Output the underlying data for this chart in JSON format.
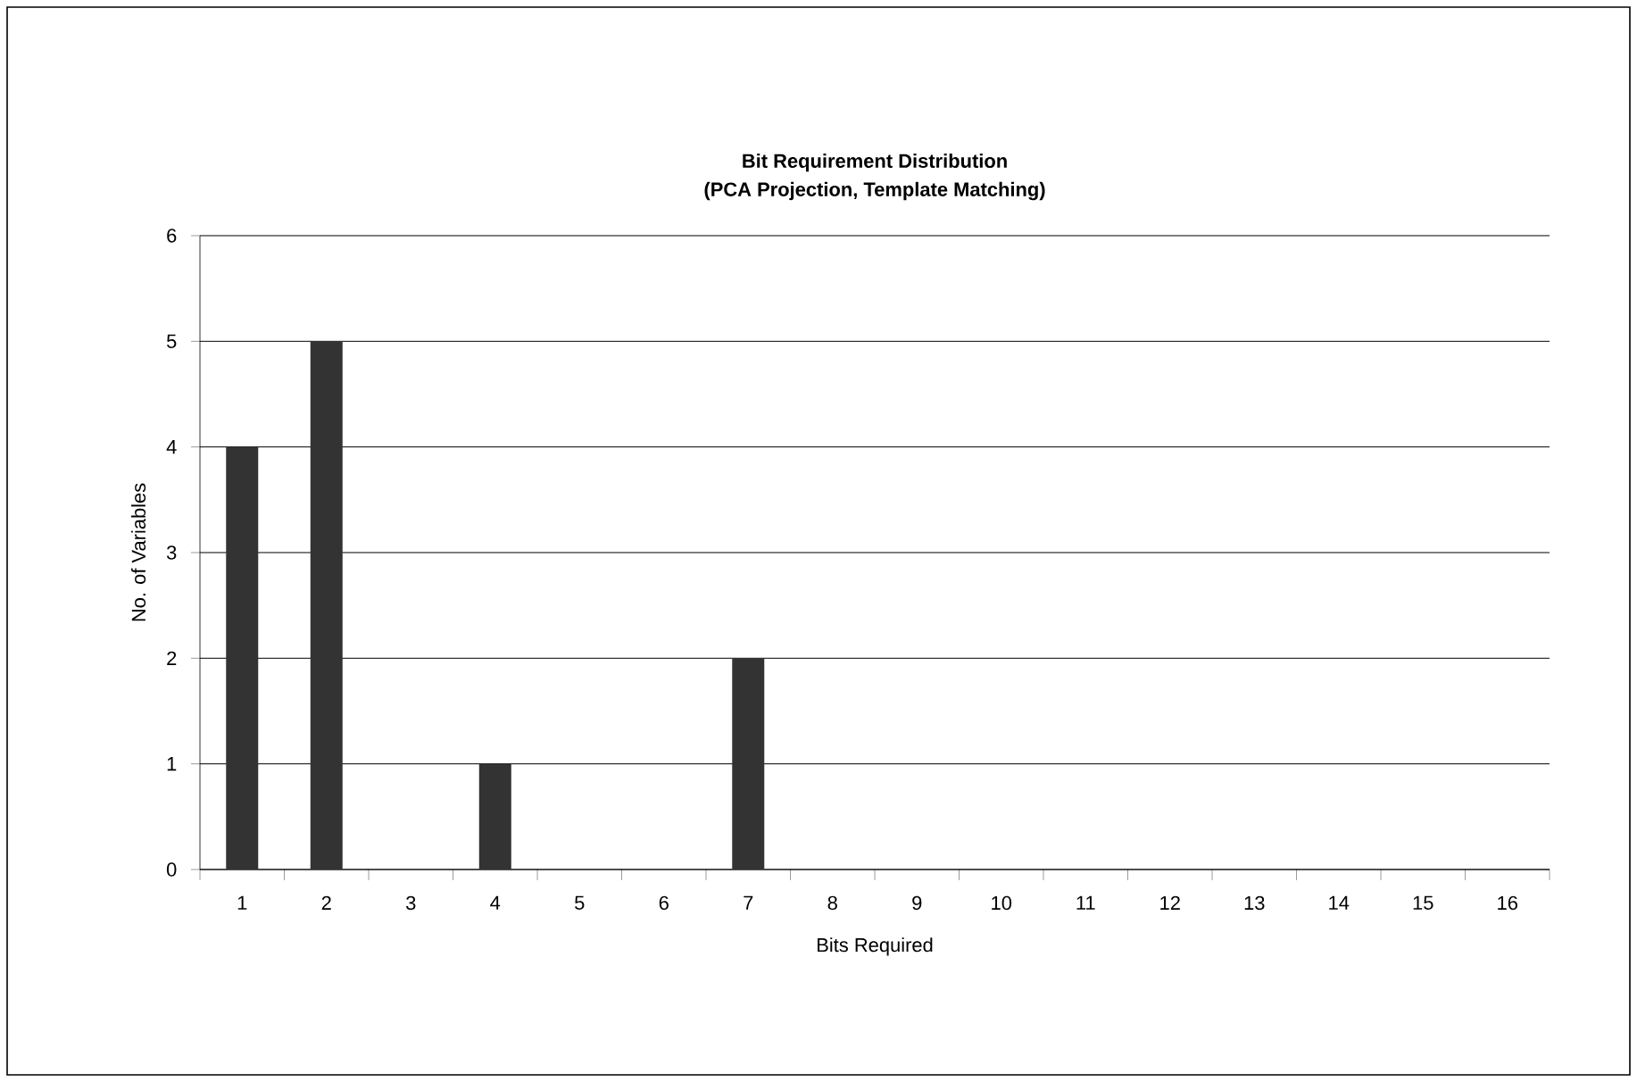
{
  "chart_data": {
    "type": "bar",
    "title": "Bit Requirement Distribution",
    "subtitle": "(PCA Projection, Template Matching)",
    "xlabel": "Bits Required",
    "ylabel": "No. of Variables",
    "categories": [
      "1",
      "2",
      "3",
      "4",
      "5",
      "6",
      "7",
      "8",
      "9",
      "10",
      "11",
      "12",
      "13",
      "14",
      "15",
      "16"
    ],
    "values": [
      4,
      5,
      0,
      1,
      0,
      0,
      2,
      0,
      0,
      0,
      0,
      0,
      0,
      0,
      0,
      0
    ],
    "color": "#333333",
    "ylim": [
      0,
      6
    ],
    "yticks": [
      0,
      1,
      2,
      3,
      4,
      5,
      6
    ],
    "grid": "y"
  }
}
